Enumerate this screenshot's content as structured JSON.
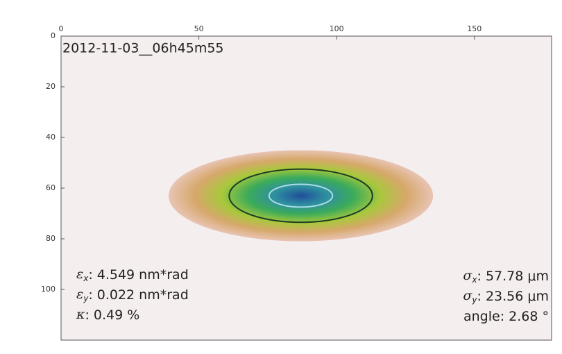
{
  "chart_data": {
    "type": "image",
    "title": "2012-11-03__06h45m55",
    "xlim": [
      0,
      178
    ],
    "xticks": [
      0,
      50,
      100,
      150
    ],
    "ylim": [
      0,
      120
    ],
    "yticks": [
      0,
      20,
      40,
      60,
      80,
      100
    ],
    "background": "#f5eeee",
    "beam": {
      "center_x": 87,
      "center_y": 63,
      "halo_rx": 48,
      "halo_ry": 18,
      "colormap": [
        "#1f4e9a",
        "#2f8fa0",
        "#3bab5a",
        "#a8c83c",
        "#d6a86a",
        "#e8c4b4"
      ],
      "contours": [
        {
          "rx": 26,
          "ry": 10.5,
          "color": "#1d3b24"
        },
        {
          "rx": 11.5,
          "ry": 4.5,
          "color": "#a9dcec"
        }
      ]
    },
    "annotations_left": [
      {
        "symbol": "ε",
        "sub": "x",
        "text": ": 4.549 nm*rad"
      },
      {
        "symbol": "ε",
        "sub": "y",
        "text": ": 0.022 nm*rad"
      },
      {
        "symbol": "κ",
        "text": ": 0.49 %"
      }
    ],
    "annotations_right": [
      {
        "symbol": "σ",
        "sub": "x",
        "text": ": 57.78 μm"
      },
      {
        "symbol": "σ",
        "sub": "y",
        "text": ": 23.56 μm"
      },
      {
        "text": "angle: 2.68 °"
      }
    ]
  }
}
